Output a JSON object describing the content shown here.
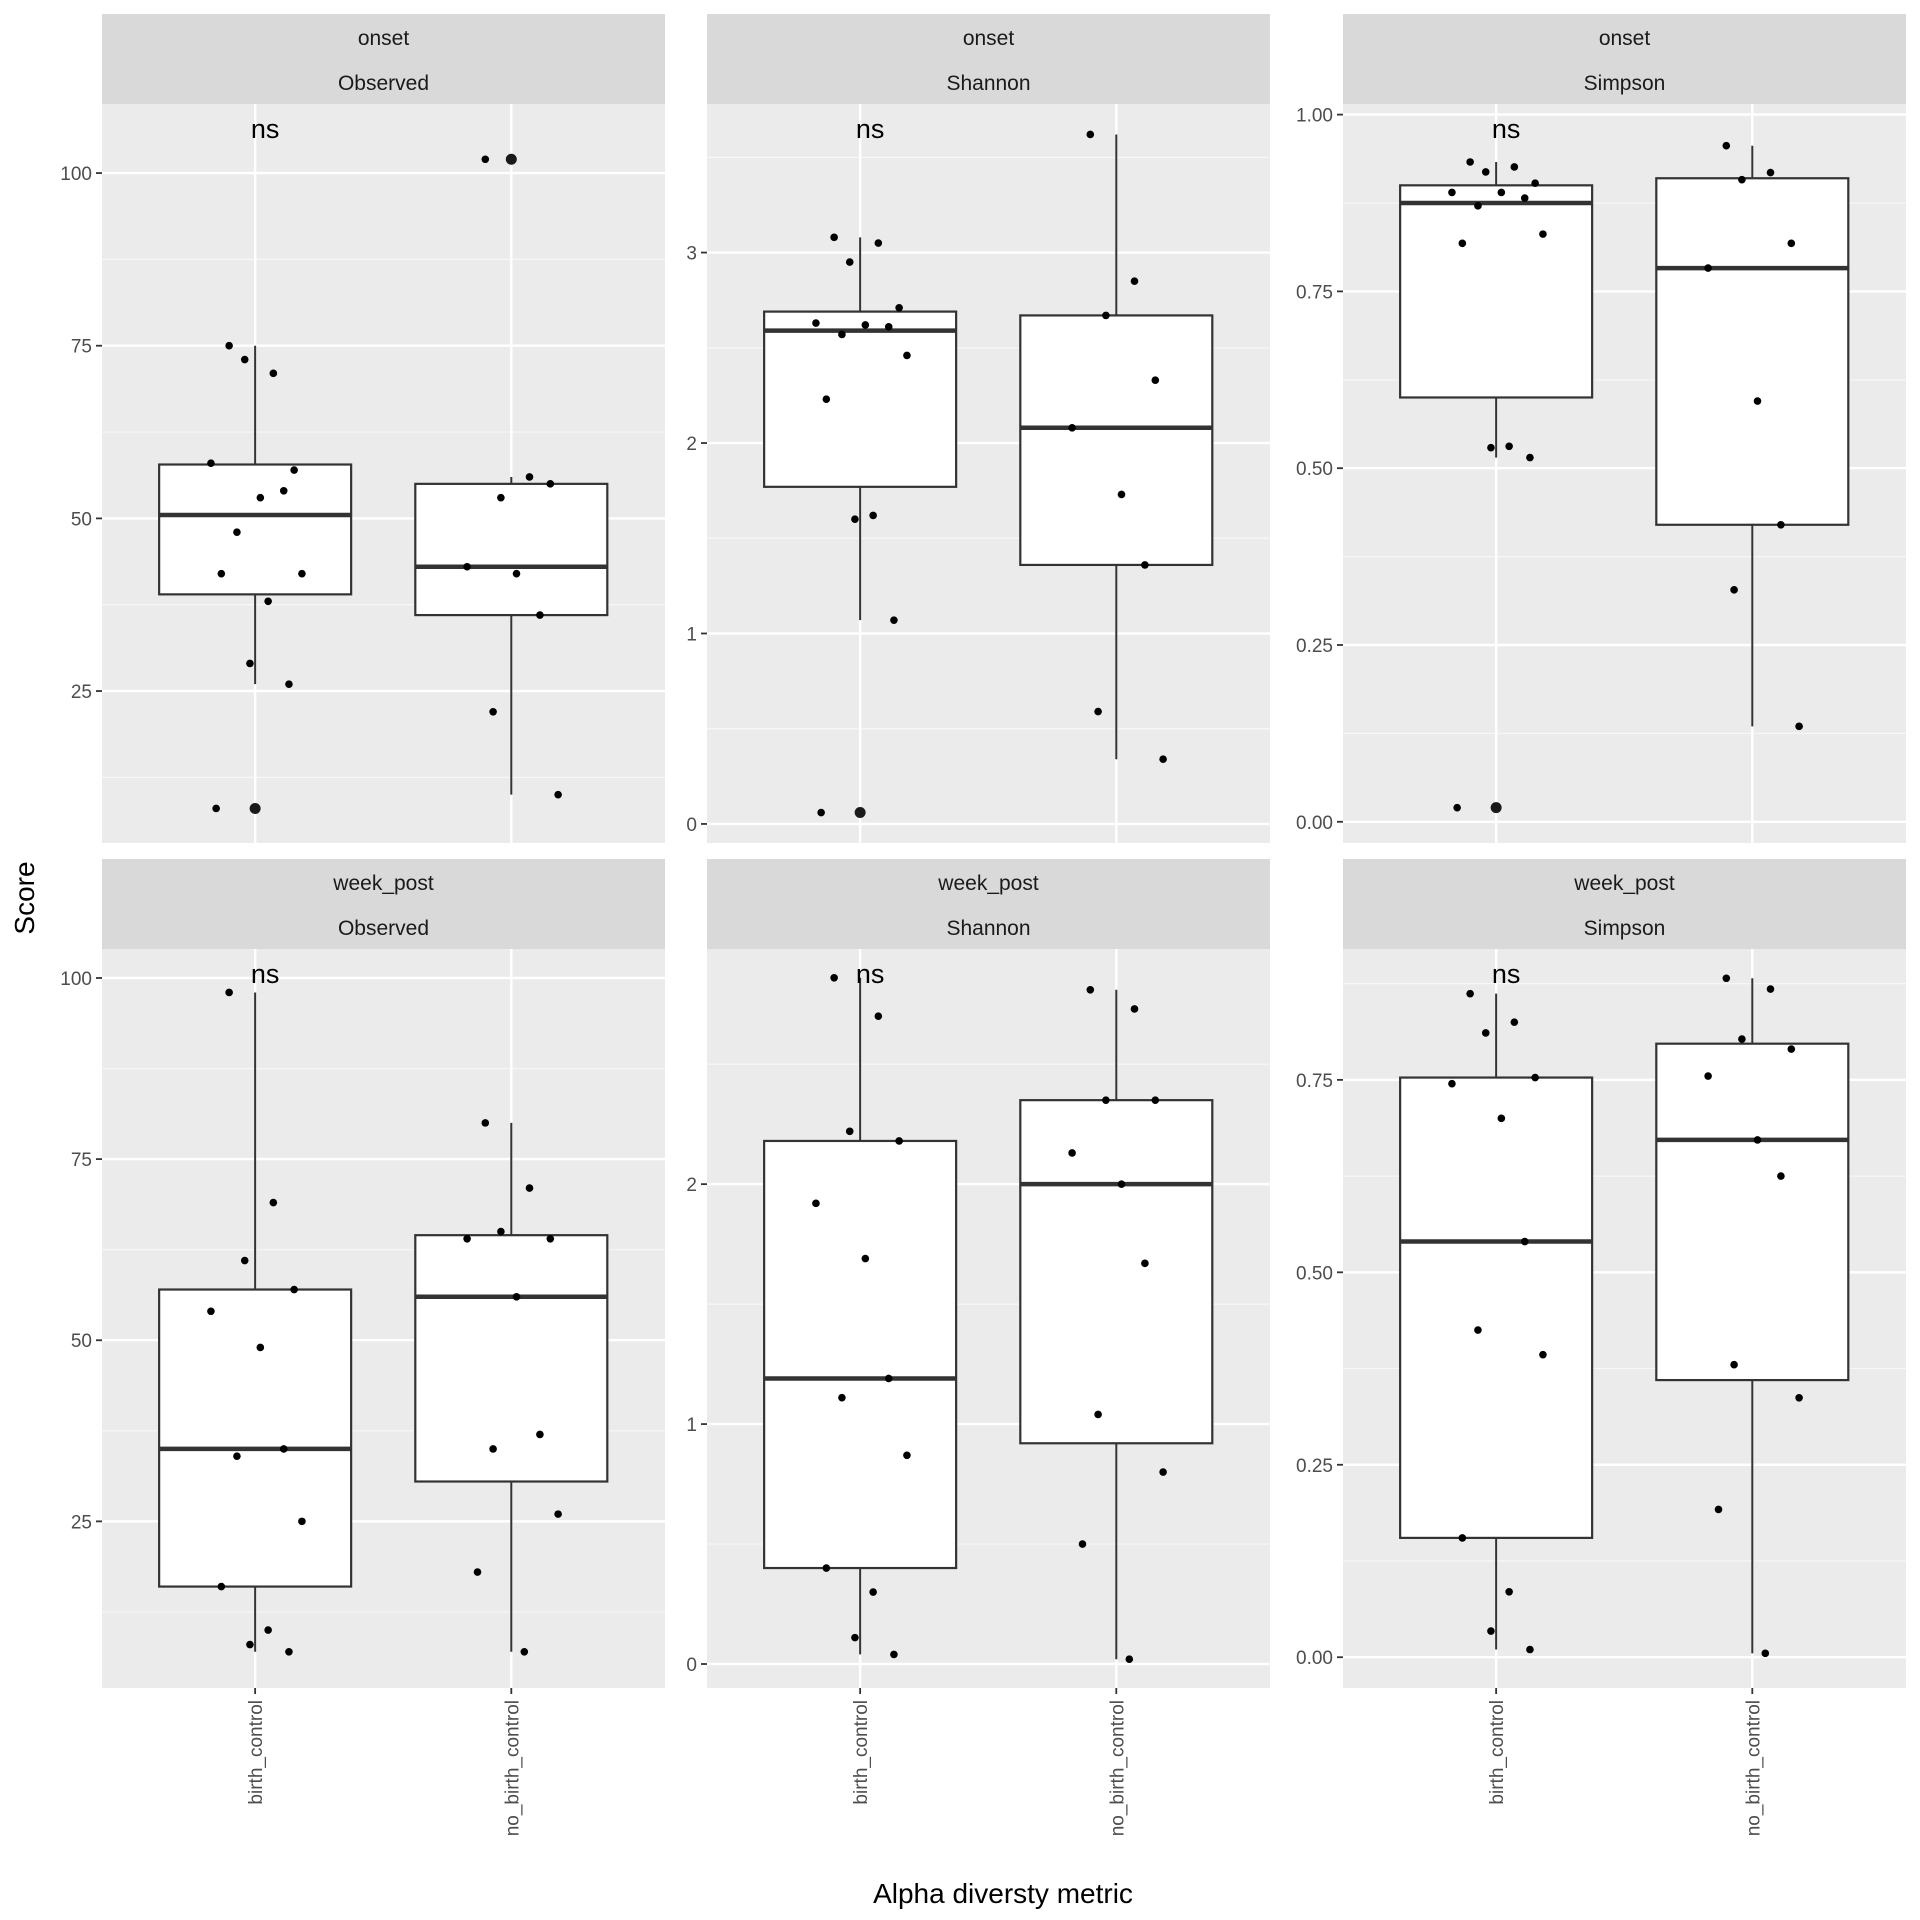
{
  "figure": {
    "y_axis_title": "Score",
    "x_axis_title": "Alpha diversty metric"
  },
  "chart_data": [
    {
      "type": "box",
      "strip": [
        "onset",
        "Observed"
      ],
      "categories": [
        "birth_control",
        "no_birth_control"
      ],
      "ylim": [
        3,
        110
      ],
      "yticks": [
        25,
        50,
        75,
        100
      ],
      "annotation": "ns",
      "grid": true,
      "boxes": [
        {
          "category": "birth_control",
          "lower": 26,
          "q1": 39,
          "median": 50.5,
          "q3": 57.8,
          "upper": 75,
          "outliers": [
            8
          ]
        },
        {
          "category": "no_birth_control",
          "lower": 10,
          "q1": 36,
          "median": 43,
          "q3": 55,
          "upper": 56,
          "outliers": [
            102
          ]
        }
      ],
      "points": [
        {
          "category": "birth_control",
          "values": [
            75,
            71,
            73,
            57,
            58,
            53,
            54,
            48,
            42,
            42,
            38,
            29,
            26,
            8
          ]
        },
        {
          "category": "no_birth_control",
          "values": [
            102,
            56,
            53,
            55,
            43,
            42,
            36,
            22,
            10
          ]
        }
      ]
    },
    {
      "type": "box",
      "strip": [
        "onset",
        "Shannon"
      ],
      "categories": [
        "birth_control",
        "no_birth_control"
      ],
      "ylim": [
        -0.1,
        3.78
      ],
      "yticks": [
        0,
        1,
        2,
        3
      ],
      "annotation": "ns",
      "grid": true,
      "boxes": [
        {
          "category": "birth_control",
          "lower": 1.07,
          "q1": 1.77,
          "median": 2.59,
          "q3": 2.69,
          "upper": 3.08,
          "outliers": [
            0.06
          ]
        },
        {
          "category": "no_birth_control",
          "lower": 0.34,
          "q1": 1.36,
          "median": 2.08,
          "q3": 2.67,
          "upper": 3.62,
          "outliers": []
        }
      ],
      "points": [
        {
          "category": "birth_control",
          "values": [
            3.08,
            3.05,
            2.95,
            2.71,
            2.63,
            2.62,
            2.61,
            2.57,
            2.46,
            2.23,
            1.62,
            1.6,
            1.07,
            0.06
          ]
        },
        {
          "category": "no_birth_control",
          "values": [
            3.62,
            2.85,
            2.67,
            2.33,
            2.08,
            1.73,
            1.36,
            0.59,
            0.34
          ]
        }
      ]
    },
    {
      "type": "box",
      "strip": [
        "onset",
        "Simpson"
      ],
      "categories": [
        "birth_control",
        "no_birth_control"
      ],
      "ylim": [
        -0.03,
        1.015
      ],
      "yticks": [
        0.0,
        0.25,
        0.5,
        0.75,
        1.0
      ],
      "ytick_labels": [
        "0.00",
        "0.25",
        "0.50",
        "0.75",
        "1.00"
      ],
      "annotation": "ns",
      "grid": true,
      "boxes": [
        {
          "category": "birth_control",
          "lower": 0.515,
          "q1": 0.6,
          "median": 0.875,
          "q3": 0.9,
          "upper": 0.933,
          "outliers": [
            0.02
          ]
        },
        {
          "category": "no_birth_control",
          "lower": 0.135,
          "q1": 0.42,
          "median": 0.783,
          "q3": 0.91,
          "upper": 0.956,
          "outliers": []
        }
      ],
      "points": [
        {
          "category": "birth_control",
          "values": [
            0.933,
            0.926,
            0.919,
            0.903,
            0.89,
            0.89,
            0.882,
            0.871,
            0.831,
            0.818,
            0.531,
            0.529,
            0.515,
            0.02
          ]
        },
        {
          "category": "no_birth_control",
          "values": [
            0.956,
            0.918,
            0.908,
            0.818,
            0.783,
            0.595,
            0.42,
            0.328,
            0.135
          ]
        }
      ]
    },
    {
      "type": "box",
      "strip": [
        "week_post",
        "Observed"
      ],
      "categories": [
        "birth_control",
        "no_birth_control"
      ],
      "ylim": [
        2,
        104
      ],
      "yticks": [
        25,
        50,
        75,
        100
      ],
      "annotation": "ns",
      "grid": true,
      "boxes": [
        {
          "category": "birth_control",
          "lower": 7,
          "q1": 16,
          "median": 35,
          "q3": 57,
          "upper": 98,
          "outliers": []
        },
        {
          "category": "no_birth_control",
          "lower": 7,
          "q1": 30.5,
          "median": 56,
          "q3": 64.5,
          "upper": 80,
          "outliers": []
        }
      ],
      "points": [
        {
          "category": "birth_control",
          "values": [
            98,
            69,
            61,
            57,
            54,
            49,
            35,
            34,
            25,
            16,
            10,
            8,
            7
          ]
        },
        {
          "category": "no_birth_control",
          "values": [
            80,
            71,
            65,
            64,
            64,
            56,
            37,
            35,
            26,
            18,
            7
          ]
        }
      ]
    },
    {
      "type": "box",
      "strip": [
        "week_post",
        "Shannon"
      ],
      "categories": [
        "birth_control",
        "no_birth_control"
      ],
      "ylim": [
        -0.1,
        2.98
      ],
      "yticks": [
        0,
        1,
        2
      ],
      "annotation": "ns",
      "grid": true,
      "boxes": [
        {
          "category": "birth_control",
          "lower": 0.04,
          "q1": 0.4,
          "median": 1.19,
          "q3": 2.18,
          "upper": 2.86,
          "outliers": []
        },
        {
          "category": "no_birth_control",
          "lower": 0.02,
          "q1": 0.92,
          "median": 2.0,
          "q3": 2.35,
          "upper": 2.81,
          "outliers": []
        }
      ],
      "points": [
        {
          "category": "birth_control",
          "values": [
            2.86,
            2.7,
            2.22,
            2.18,
            1.92,
            1.69,
            1.19,
            1.11,
            0.87,
            0.4,
            0.3,
            0.11,
            0.04
          ]
        },
        {
          "category": "no_birth_control",
          "values": [
            2.81,
            2.73,
            2.35,
            2.35,
            2.13,
            2.0,
            1.67,
            1.04,
            0.8,
            0.5,
            0.02
          ]
        }
      ]
    },
    {
      "type": "box",
      "strip": [
        "week_post",
        "Simpson"
      ],
      "categories": [
        "birth_control",
        "no_birth_control"
      ],
      "ylim": [
        -0.04,
        0.92
      ],
      "yticks": [
        0.0,
        0.25,
        0.5,
        0.75
      ],
      "ytick_labels": [
        "0.00",
        "0.25",
        "0.50",
        "0.75"
      ],
      "annotation": "ns",
      "grid": true,
      "boxes": [
        {
          "category": "birth_control",
          "lower": 0.01,
          "q1": 0.155,
          "median": 0.54,
          "q3": 0.753,
          "upper": 0.862,
          "outliers": []
        },
        {
          "category": "no_birth_control",
          "lower": 0.005,
          "q1": 0.36,
          "median": 0.672,
          "q3": 0.797,
          "upper": 0.882,
          "outliers": []
        }
      ],
      "points": [
        {
          "category": "birth_control",
          "values": [
            0.862,
            0.825,
            0.811,
            0.753,
            0.745,
            0.7,
            0.54,
            0.425,
            0.393,
            0.155,
            0.085,
            0.034,
            0.01
          ]
        },
        {
          "category": "no_birth_control",
          "values": [
            0.882,
            0.868,
            0.803,
            0.79,
            0.755,
            0.672,
            0.625,
            0.38,
            0.337,
            0.192,
            0.005
          ]
        }
      ]
    }
  ]
}
